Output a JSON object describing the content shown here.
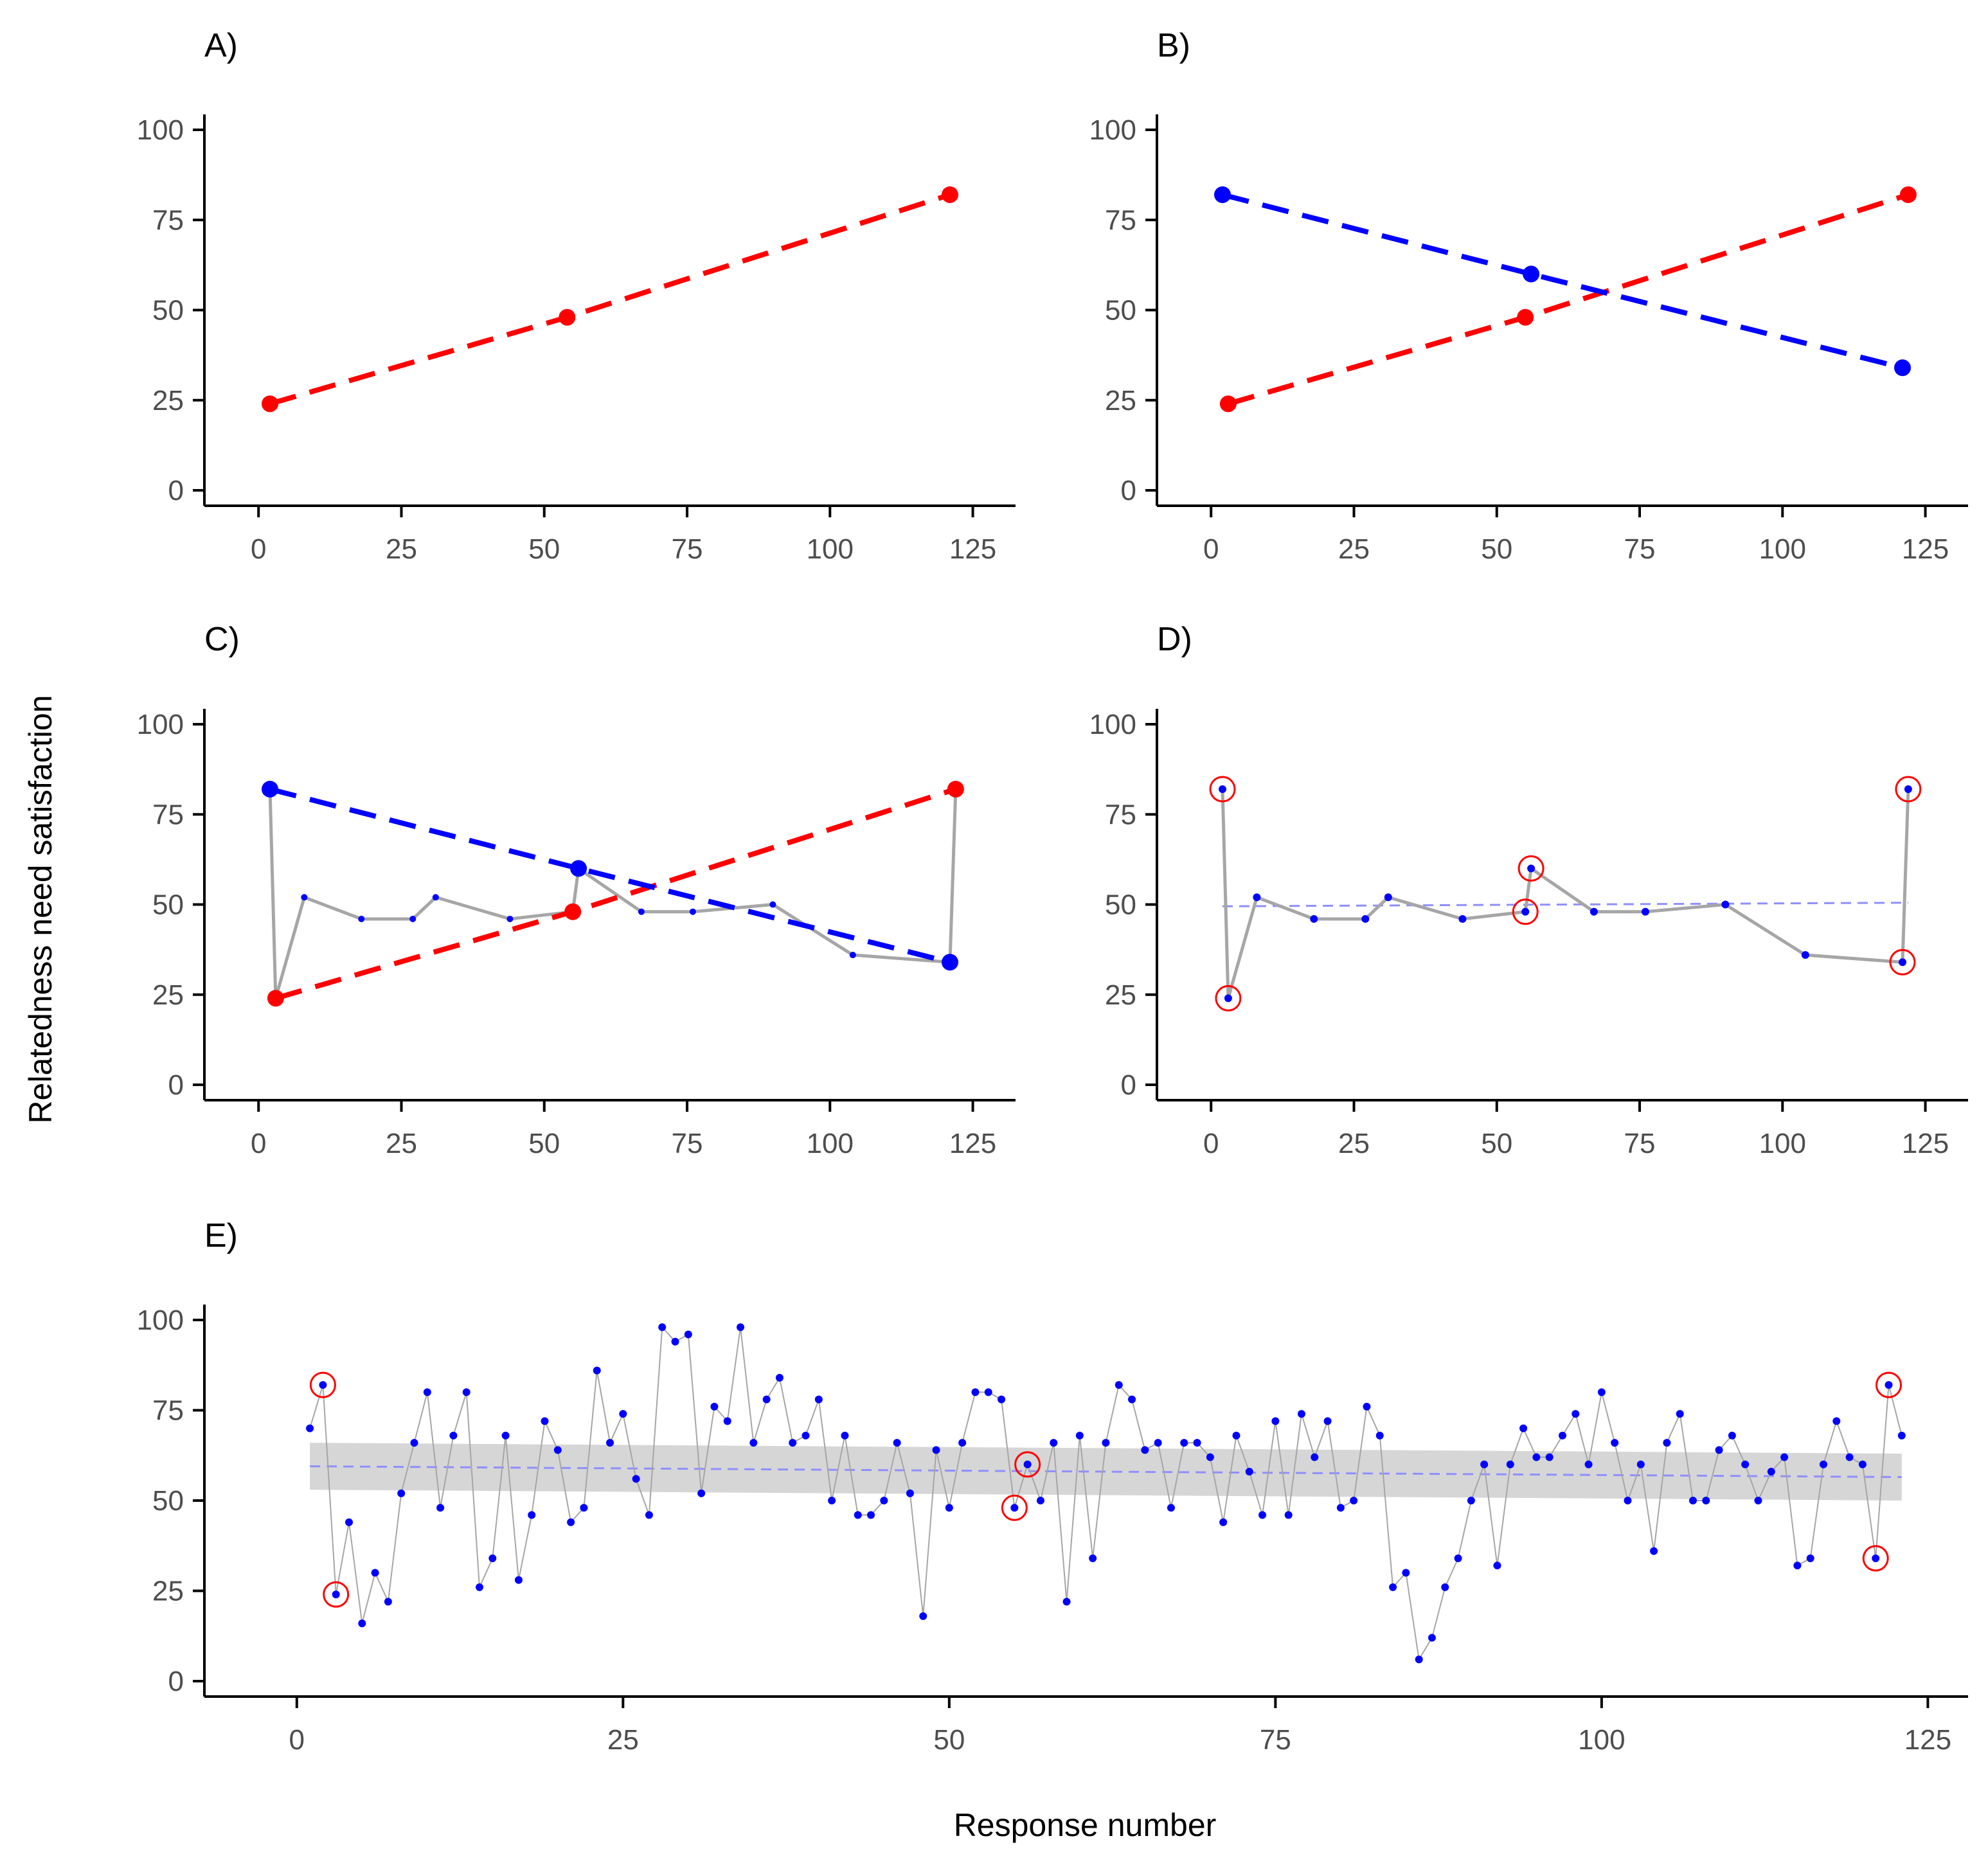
{
  "figure": {
    "ylabel": "Relatedness need satisfaction",
    "xlabel": "Response number"
  },
  "colors": {
    "red": "#ff0000",
    "blue": "#0000ff",
    "grey_line": "#a6a6a6",
    "trend": "#8f8fff",
    "ribbon": "#d4d4d4",
    "axis": "#000000"
  },
  "chart_data": [
    {
      "id": "A",
      "title": "A)",
      "type": "line",
      "xlim": [
        -7,
        130
      ],
      "ylim": [
        0,
        100
      ],
      "xticks": [
        0,
        25,
        50,
        75,
        100,
        125
      ],
      "yticks": [
        0,
        25,
        50,
        75,
        100
      ],
      "series": [
        {
          "name": "red-dashed",
          "style": "dashed",
          "color": "red",
          "x": [
            2,
            54,
            121
          ],
          "y": [
            24,
            48,
            82
          ]
        }
      ]
    },
    {
      "id": "B",
      "title": "B)",
      "type": "line",
      "xlim": [
        -7,
        130
      ],
      "ylim": [
        0,
        100
      ],
      "xticks": [
        0,
        25,
        50,
        75,
        100,
        125
      ],
      "yticks": [
        0,
        25,
        50,
        75,
        100
      ],
      "series": [
        {
          "name": "red-dashed",
          "style": "dashed",
          "color": "red",
          "x": [
            3,
            55,
            122
          ],
          "y": [
            24,
            48,
            82
          ]
        },
        {
          "name": "blue-dashed",
          "style": "dashed",
          "color": "blue",
          "x": [
            2,
            56,
            121
          ],
          "y": [
            82,
            60,
            34
          ]
        }
      ]
    },
    {
      "id": "C",
      "title": "C)",
      "type": "line",
      "xlim": [
        -7,
        130
      ],
      "ylim": [
        0,
        100
      ],
      "xticks": [
        0,
        25,
        50,
        75,
        100,
        125
      ],
      "yticks": [
        0,
        25,
        50,
        75,
        100
      ],
      "series": [
        {
          "name": "observed",
          "style": "grey",
          "color": "grey_line",
          "x": [
            2,
            3,
            8,
            18,
            27,
            31,
            44,
            55,
            56,
            67,
            76,
            90,
            104,
            121,
            122
          ],
          "y": [
            82,
            24,
            52,
            46,
            46,
            52,
            46,
            48,
            60,
            48,
            48,
            50,
            36,
            34,
            82
          ]
        },
        {
          "name": "red-dashed",
          "style": "dashed",
          "color": "red",
          "x": [
            3,
            55,
            122
          ],
          "y": [
            24,
            48,
            82
          ]
        },
        {
          "name": "blue-dashed",
          "style": "dashed",
          "color": "blue",
          "x": [
            2,
            56,
            121
          ],
          "y": [
            82,
            60,
            34
          ]
        }
      ]
    },
    {
      "id": "D",
      "title": "D)",
      "type": "line",
      "xlim": [
        -7,
        130
      ],
      "ylim": [
        0,
        100
      ],
      "xticks": [
        0,
        25,
        50,
        75,
        100,
        125
      ],
      "yticks": [
        0,
        25,
        50,
        75,
        100
      ],
      "series": [
        {
          "name": "observed",
          "style": "grey-points",
          "color": "grey_line",
          "x": [
            2,
            3,
            8,
            18,
            27,
            31,
            44,
            55,
            56,
            67,
            76,
            90,
            104,
            121,
            122
          ],
          "y": [
            82,
            24,
            52,
            46,
            46,
            52,
            46,
            48,
            60,
            48,
            48,
            50,
            36,
            34,
            82
          ]
        }
      ],
      "trend": {
        "x": [
          2,
          122
        ],
        "y": [
          49.5,
          50.5
        ]
      },
      "circled": {
        "x": [
          2,
          3,
          55,
          56,
          121,
          122
        ],
        "y": [
          82,
          24,
          48,
          60,
          34,
          82
        ]
      }
    },
    {
      "id": "E",
      "title": "E)",
      "type": "line",
      "xlim": [
        -6,
        127
      ],
      "ylim": [
        0,
        100
      ],
      "xticks": [
        0,
        25,
        50,
        75,
        100,
        125
      ],
      "yticks": [
        0,
        25,
        50,
        75,
        100
      ],
      "series": [
        {
          "name": "all-responses",
          "style": "thin-points",
          "color": "grey_line",
          "x": [
            1,
            2,
            3,
            4,
            5,
            6,
            7,
            8,
            9,
            10,
            11,
            12,
            13,
            14,
            15,
            16,
            17,
            18,
            19,
            20,
            21,
            22,
            23,
            24,
            25,
            26,
            27,
            28,
            29,
            30,
            31,
            32,
            33,
            34,
            35,
            36,
            37,
            38,
            39,
            40,
            41,
            42,
            43,
            44,
            45,
            46,
            47,
            48,
            49,
            50,
            51,
            52,
            53,
            54,
            55,
            56,
            57,
            58,
            59,
            60,
            61,
            62,
            63,
            64,
            65,
            66,
            67,
            68,
            69,
            70,
            71,
            72,
            73,
            74,
            75,
            76,
            77,
            78,
            79,
            80,
            81,
            82,
            83,
            84,
            85,
            86,
            87,
            88,
            89,
            90,
            91,
            92,
            93,
            94,
            95,
            96,
            97,
            98,
            99,
            100,
            101,
            102,
            103,
            104,
            105,
            106,
            107,
            108,
            109,
            110,
            111,
            112,
            113,
            114,
            115,
            116,
            117,
            118,
            119,
            120,
            121,
            122,
            123
          ],
          "y": [
            70,
            82,
            24,
            44,
            16,
            30,
            22,
            52,
            66,
            80,
            48,
            68,
            80,
            26,
            34,
            68,
            28,
            46,
            72,
            64,
            44,
            48,
            86,
            66,
            74,
            56,
            46,
            98,
            94,
            96,
            52,
            76,
            72,
            98,
            66,
            78,
            84,
            66,
            68,
            78,
            50,
            68,
            46,
            46,
            50,
            66,
            52,
            18,
            64,
            48,
            66,
            80,
            80,
            78,
            48,
            60,
            50,
            66,
            22,
            68,
            34,
            66,
            82,
            78,
            64,
            66,
            48,
            66,
            66,
            62,
            44,
            68,
            58,
            46,
            72,
            46,
            74,
            62,
            72,
            48,
            50,
            76,
            68,
            26,
            30,
            6,
            12,
            26,
            34,
            50,
            60,
            32,
            60,
            70,
            62,
            62,
            68,
            74,
            60,
            80,
            66,
            50,
            60,
            36,
            66,
            74,
            50,
            50,
            64,
            68,
            60,
            50,
            58,
            62,
            32,
            34,
            60,
            72,
            62,
            60,
            34,
            82,
            68
          ]
        }
      ],
      "trend": {
        "x": [
          1,
          123
        ],
        "y": [
          59.5,
          56.5
        ]
      },
      "ribbon": {
        "x": [
          1,
          123
        ],
        "lower": [
          53,
          50
        ],
        "upper": [
          66,
          63
        ]
      },
      "circled": {
        "x": [
          2,
          3,
          55,
          56,
          121,
          122
        ],
        "y": [
          82,
          24,
          48,
          60,
          34,
          82
        ]
      }
    }
  ]
}
